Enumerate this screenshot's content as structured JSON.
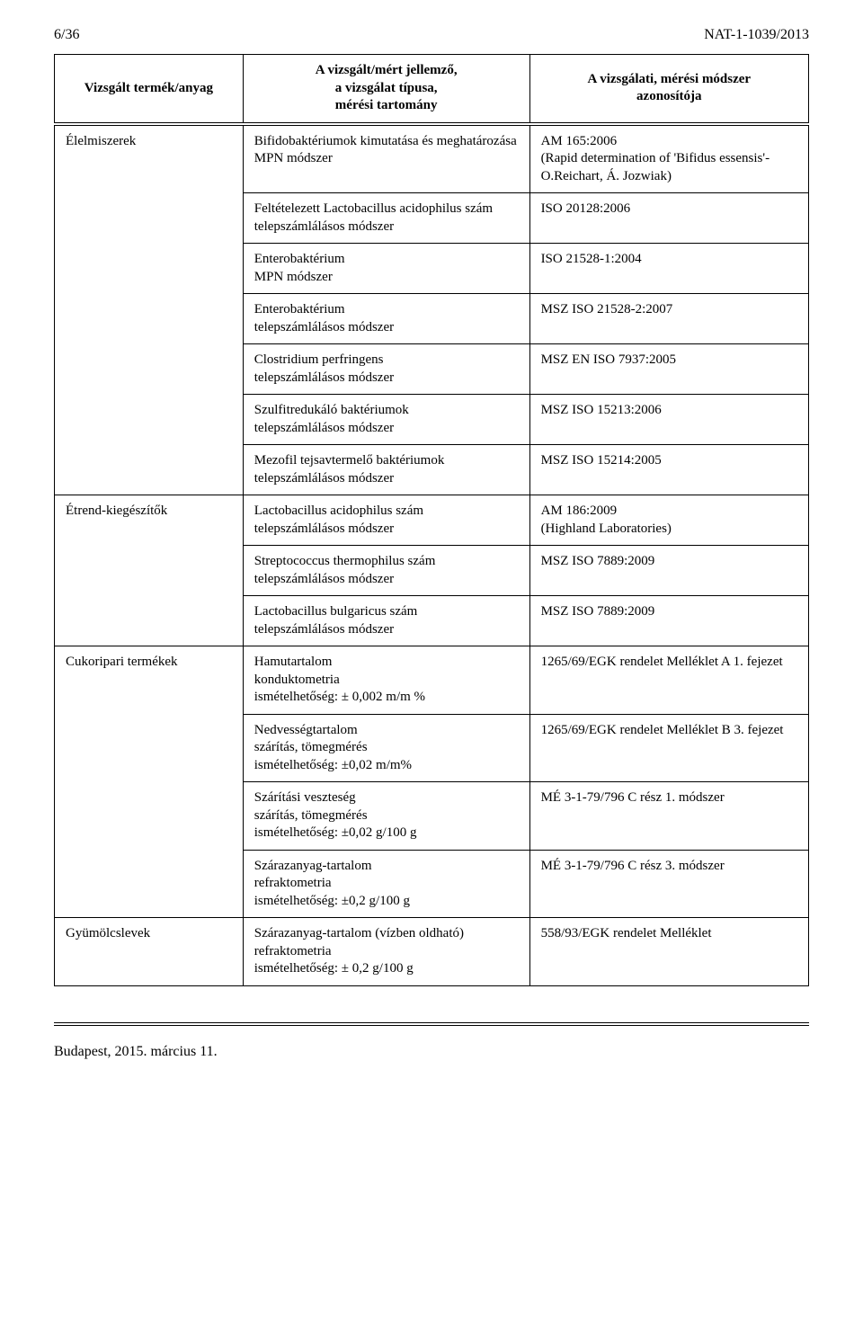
{
  "header": {
    "page_num": "6/36",
    "doc_id": "NAT-1-1039/2013"
  },
  "table_headers": {
    "c1": "Vizsgált termék/anyag",
    "c2": "A vizsgált/mért jellemző,\na vizsgálat típusa,\nmérési tartomány",
    "c3": "A vizsgálati, mérési módszer\nazonosítója"
  },
  "rows": [
    {
      "cat": "Élelmiszerek",
      "param": "Bifidobaktériumok kimutatása és meghatározása\nMPN módszer",
      "method": "AM 165:2006\n(Rapid determination of 'Bifidus essensis'-O.Reichart, Á. Jozwiak)"
    },
    {
      "cat": "",
      "param": "Feltételezett Lactobacillus acidophilus szám\ntelepszámlálásos módszer",
      "method": "ISO 20128:2006"
    },
    {
      "cat": "",
      "param": "Enterobaktérium\nMPN módszer",
      "method": "ISO 21528-1:2004"
    },
    {
      "cat": "",
      "param": "Enterobaktérium\ntelepszámlálásos módszer",
      "method": "MSZ ISO 21528-2:2007"
    },
    {
      "cat": "",
      "param": "Clostridium perfringens\n telepszámlálásos módszer",
      "method": "MSZ EN ISO 7937:2005"
    },
    {
      "cat": "",
      "param": "Szulfitredukáló baktériumok\ntelepszámlálásos módszer",
      "method": "MSZ ISO 15213:2006"
    },
    {
      "cat": "",
      "param": "Mezofil tejsavtermelő baktériumok\ntelepszámlálásos módszer",
      "method": "MSZ ISO 15214:2005"
    },
    {
      "cat": "Étrend-kiegészítők",
      "param": "Lactobacillus acidophilus szám\ntelepszámlálásos módszer",
      "method": "AM 186:2009\n(Highland Laboratories)"
    },
    {
      "cat": "",
      "param": "Streptococcus thermophilus szám\ntelepszámlálásos módszer",
      "method": "MSZ ISO 7889:2009"
    },
    {
      "cat": "",
      "param": "Lactobacillus bulgaricus szám\ntelepszámlálásos módszer",
      "method": "MSZ ISO 7889:2009"
    },
    {
      "cat": "Cukoripari termékek",
      "param": "Hamutartalom\nkonduktometria\nismételhetőség: ± 0,002 m/m %",
      "method": "1265/69/EGK rendelet Melléklet A 1. fejezet"
    },
    {
      "cat": "",
      "param": "Nedvességtartalom\nszárítás, tömegmérés\nismételhetőség: ±0,02 m/m%",
      "method": "1265/69/EGK rendelet Melléklet B 3. fejezet"
    },
    {
      "cat": "",
      "param": "Szárítási veszteség\nszárítás, tömegmérés\nismételhetőség:  ±0,02 g/100 g",
      "method": "MÉ 3-1-79/796 C rész 1. módszer"
    },
    {
      "cat": "",
      "param": "Szárazanyag-tartalom\nrefraktometria\nismételhetőség:  ±0,2 g/100 g",
      "method": "MÉ 3-1-79/796 C rész 3. módszer"
    },
    {
      "cat": "Gyümölcslevek",
      "param": "Szárazanyag-tartalom (vízben oldható) refraktometria\nismételhetőség: ± 0,2 g/100 g",
      "method": "558/93/EGK rendelet Melléklet"
    }
  ],
  "row_groups": [
    {
      "start": 0,
      "end": 6
    },
    {
      "start": 7,
      "end": 9
    },
    {
      "start": 10,
      "end": 13
    },
    {
      "start": 14,
      "end": 14
    }
  ],
  "footer": "Budapest, 2015. március 11."
}
